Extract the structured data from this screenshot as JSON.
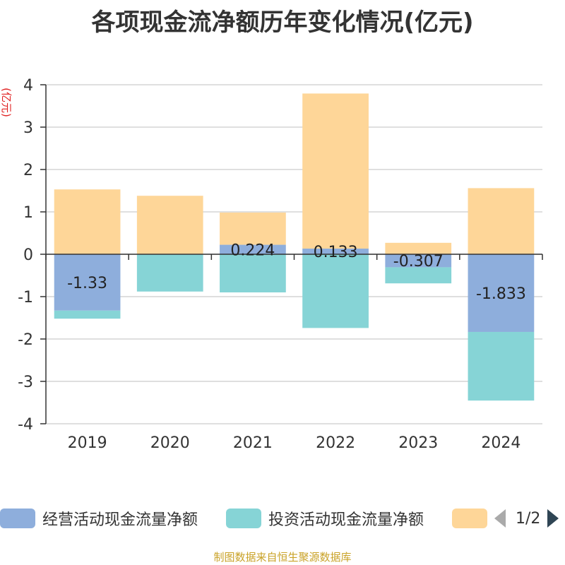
{
  "chart_data": {
    "type": "bar",
    "stacked": true,
    "title": "各项现金流净额历年变化情况(亿元)",
    "ylabel": "(亿元)",
    "xlabel": "",
    "ylim": [
      -4,
      4
    ],
    "yticks": [
      4,
      3,
      2,
      1,
      0,
      -1,
      -2,
      -3,
      -4
    ],
    "grid": true,
    "categories": [
      "2019",
      "2020",
      "2021",
      "2022",
      "2023",
      "2024"
    ],
    "series": [
      {
        "name": "经营活动现金流量净额",
        "color": "#8eaedc",
        "values": [
          -1.33,
          0.0,
          0.224,
          0.133,
          -0.307,
          -1.833
        ],
        "labels": [
          "-1.33",
          "",
          "0.224",
          "0.133",
          "-0.307",
          "-1.833"
        ]
      },
      {
        "name": "投资活动现金流量净额",
        "color": "#86d4d6",
        "values": [
          -0.19,
          -0.88,
          -0.9,
          -1.74,
          -0.38,
          -1.62
        ]
      },
      {
        "name": "",
        "color": "#fed698",
        "values": [
          1.53,
          1.38,
          0.76,
          3.66,
          0.27,
          1.56
        ]
      }
    ],
    "legend_position": "bottom",
    "legend_page": "1/2",
    "source": "制图数据来自恒生聚源数据库"
  }
}
